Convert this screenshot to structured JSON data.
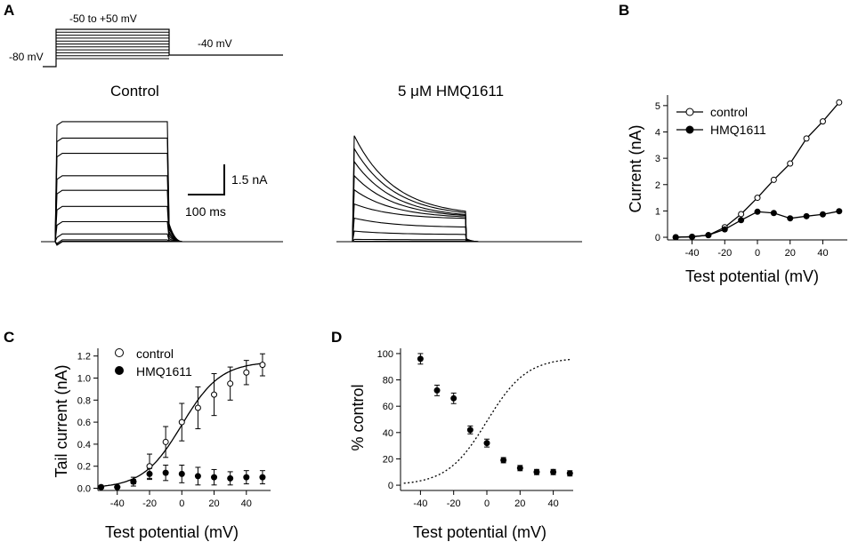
{
  "panel_labels": [
    "A",
    "B",
    "C",
    "D"
  ],
  "protocol": {
    "step_label": "-50 to +50 mV",
    "holding_label": "-80 mV",
    "tail_label": "-40 mV"
  },
  "traces": {
    "control_title": "Control",
    "drug_title": "5 μM HMQ1611",
    "scale_current": "1.5 nA",
    "scale_time": "100 ms",
    "control_levels": [
      0.0,
      0.02,
      0.08,
      0.33,
      0.85,
      1.5,
      2.18,
      2.8,
      3.75,
      4.4,
      5.1
    ],
    "drug_peaks": [
      0.0,
      0.02,
      0.1,
      0.45,
      1.0,
      1.6,
      2.2,
      2.8,
      3.4,
      3.95,
      4.5
    ],
    "drug_ends": [
      0.0,
      0.02,
      0.08,
      0.3,
      0.6,
      0.95,
      0.98,
      1.0,
      1.0,
      1.05,
      1.08
    ]
  },
  "chart_data": [
    {
      "panel": "B",
      "type": "line",
      "xlabel": "Test potential (mV)",
      "ylabel": "Current (nA)",
      "xlim": [
        -55,
        55
      ],
      "ylim": [
        -0.1,
        5.4
      ],
      "xticks": [
        -40,
        -20,
        0,
        20,
        40
      ],
      "yticks": [
        0,
        1,
        2,
        3,
        4,
        5
      ],
      "x": [
        -50,
        -40,
        -30,
        -20,
        -10,
        0,
        10,
        20,
        30,
        40,
        50
      ],
      "series": [
        {
          "name": "control",
          "marker": "open",
          "values": [
            0.0,
            0.02,
            0.08,
            0.38,
            0.88,
            1.5,
            2.18,
            2.8,
            3.75,
            4.4,
            5.12
          ]
        },
        {
          "name": "HMQ1611",
          "marker": "filled",
          "values": [
            0.0,
            0.02,
            0.08,
            0.3,
            0.65,
            0.97,
            0.92,
            0.72,
            0.8,
            0.87,
            0.99
          ]
        }
      ],
      "legend": "top-left"
    },
    {
      "panel": "C",
      "type": "scatter",
      "xlabel": "Test potential (mV)",
      "ylabel": "Tail current (nA)",
      "xlim": [
        -52,
        55
      ],
      "ylim": [
        -0.02,
        1.27
      ],
      "xticks": [
        -40,
        -20,
        0,
        20,
        40
      ],
      "yticks": [
        "0.0",
        "0.2",
        "0.4",
        "0.6",
        "0.8",
        "1.0",
        "1.2"
      ],
      "x": [
        -50,
        -40,
        -30,
        -20,
        -10,
        0,
        10,
        20,
        30,
        40,
        50
      ],
      "series": [
        {
          "name": "control",
          "marker": "open",
          "values": [
            0.01,
            0.01,
            0.06,
            0.2,
            0.42,
            0.6,
            0.73,
            0.85,
            0.95,
            1.05,
            1.12
          ],
          "errors": [
            0.0,
            0.0,
            0.04,
            0.11,
            0.14,
            0.17,
            0.19,
            0.19,
            0.15,
            0.11,
            0.1
          ]
        },
        {
          "name": "HMQ1611",
          "marker": "filled",
          "values": [
            0.01,
            0.01,
            0.06,
            0.13,
            0.14,
            0.13,
            0.11,
            0.1,
            0.09,
            0.1,
            0.1
          ],
          "errors": [
            0.0,
            0.0,
            0.02,
            0.05,
            0.07,
            0.08,
            0.08,
            0.07,
            0.06,
            0.06,
            0.06
          ]
        }
      ],
      "fit": {
        "type": "boltzmann",
        "amplitude": 1.15,
        "v_half": 0,
        "slope": 12
      },
      "legend": "top-left"
    },
    {
      "panel": "D",
      "type": "scatter",
      "xlabel": "Test potential (mV)",
      "ylabel": "% control",
      "xlim": [
        -52,
        52
      ],
      "ylim": [
        -4,
        104
      ],
      "xticks": [
        -40,
        -20,
        0,
        20,
        40
      ],
      "yticks": [
        0,
        20,
        40,
        60,
        80,
        100
      ],
      "x": [
        -40,
        -30,
        -20,
        -10,
        0,
        10,
        20,
        30,
        40,
        50
      ],
      "series": [
        {
          "name": "% control",
          "marker": "filled",
          "values": [
            96,
            72,
            66,
            42,
            32,
            19,
            13,
            10,
            10,
            9
          ],
          "errors": [
            4,
            4,
            4,
            3,
            3,
            2,
            2,
            2,
            2,
            2
          ]
        }
      ],
      "reference_curve": {
        "style": "dotted",
        "type": "boltzmann",
        "v_half": 0,
        "slope": 12,
        "max": 97
      }
    }
  ]
}
